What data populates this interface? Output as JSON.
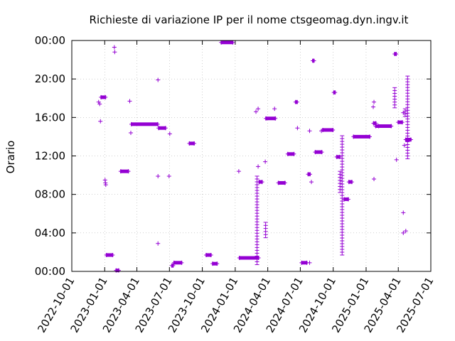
{
  "chart_data": {
    "type": "scatter",
    "title": "Richieste di variazione IP per il nome ctsgeomag.dyn.ingv.it",
    "xlabel": "",
    "ylabel": "Orario",
    "xlim": [
      "2022-10-01",
      "2025-07-01"
    ],
    "ylim": [
      "00:00",
      "24:00"
    ],
    "x_ticks": [
      "2022-10-01",
      "2023-01-01",
      "2023-04-01",
      "2023-07-01",
      "2023-10-01",
      "2024-01-01",
      "2024-04-01",
      "2024-07-01",
      "2024-10-01",
      "2025-01-01",
      "2025-04-01",
      "2025-07-01"
    ],
    "y_ticks": [
      "00:00",
      "04:00",
      "08:00",
      "12:00",
      "16:00",
      "20:00",
      "00:00"
    ],
    "grid": true,
    "legend": "none",
    "marker": "+",
    "color": "#9400d3",
    "series": [
      {
        "points": [
          {
            "x": "2022-12-15",
            "y": 17.6
          },
          {
            "x": "2022-12-18",
            "y": 17.4
          },
          {
            "x": "2022-12-20",
            "y": 15.6
          },
          {
            "x": "2023-01-02",
            "y": 9.5
          },
          {
            "x": "2023-01-03",
            "y": 9.2
          },
          {
            "x": "2023-01-04",
            "y": 9.0
          },
          {
            "x": "2023-01-28",
            "y": 23.3
          },
          {
            "x": "2023-01-29",
            "y": 22.8
          },
          {
            "x": "2023-03-12",
            "y": 17.7
          },
          {
            "x": "2023-03-15",
            "y": 14.4
          },
          {
            "x": "2023-05-30",
            "y": 19.9
          },
          {
            "x": "2023-05-30",
            "y": 9.9
          },
          {
            "x": "2023-05-30",
            "y": 2.9
          },
          {
            "x": "2023-06-30",
            "y": 9.9
          },
          {
            "x": "2023-07-02",
            "y": 14.3
          },
          {
            "x": "2024-01-11",
            "y": 10.4
          },
          {
            "x": "2024-02-28",
            "y": 16.6
          },
          {
            "x": "2024-03-05",
            "y": 16.9
          },
          {
            "x": "2024-03-05",
            "y": 10.9
          },
          {
            "x": "2024-03-25",
            "y": 11.4
          },
          {
            "x": "2024-04-20",
            "y": 16.9
          },
          {
            "x": "2024-06-23",
            "y": 14.9
          },
          {
            "x": "2024-07-27",
            "y": 14.6
          },
          {
            "x": "2024-07-27",
            "y": 0.9
          },
          {
            "x": "2024-08-01",
            "y": 9.3
          },
          {
            "x": "2024-08-29",
            "y": 14.6
          },
          {
            "x": "2025-01-21",
            "y": 17.1
          },
          {
            "x": "2025-01-23",
            "y": 17.6
          },
          {
            "x": "2025-01-23",
            "y": 9.6
          },
          {
            "x": "2025-03-27",
            "y": 11.6
          },
          {
            "x": "2025-04-15",
            "y": 16.5
          },
          {
            "x": "2025-04-15",
            "y": 6.1
          },
          {
            "x": "2025-04-15",
            "y": 4.0
          },
          {
            "x": "2025-04-18",
            "y": 13.1
          },
          {
            "x": "2025-04-22",
            "y": 4.2
          }
        ],
        "vertical_runs": [
          {
            "x": "2024-03-02",
            "y_from": 0.7,
            "y_to": 9.9
          },
          {
            "x": "2024-03-26",
            "y_from": 3.5,
            "y_to": 5.1
          },
          {
            "x": "2024-10-26",
            "y_from": 1.7,
            "y_to": 14.1
          },
          {
            "x": "2024-10-20",
            "y_from": 8.2,
            "y_to": 10.4
          },
          {
            "x": "2025-03-22",
            "y_from": 17.0,
            "y_to": 19.1
          },
          {
            "x": "2025-04-20",
            "y_from": 16.1,
            "y_to": 16.9
          },
          {
            "x": "2025-04-27",
            "y_from": 11.7,
            "y_to": 20.3
          }
        ],
        "horizontal_runs": [
          {
            "x_from": "2022-12-22",
            "x_to": "2023-01-03",
            "y": 18.1
          },
          {
            "x_from": "2023-01-06",
            "x_to": "2023-01-23",
            "y": 1.7
          },
          {
            "x_from": "2023-02-02",
            "x_to": "2023-02-09",
            "y": 0.1
          },
          {
            "x_from": "2023-02-15",
            "x_to": "2023-03-08",
            "y": 10.4
          },
          {
            "x_from": "2023-03-17",
            "x_to": "2023-05-29",
            "y": 15.3
          },
          {
            "x_from": "2023-06-01",
            "x_to": "2023-06-20",
            "y": 14.9
          },
          {
            "x_from": "2023-07-08",
            "x_to": "2023-07-11",
            "y": 0.6
          },
          {
            "x_from": "2023-07-14",
            "x_to": "2023-08-04",
            "y": 0.9
          },
          {
            "x_from": "2023-08-26",
            "x_to": "2023-09-08",
            "y": 13.3
          },
          {
            "x_from": "2023-10-12",
            "x_to": "2023-10-25",
            "y": 1.7
          },
          {
            "x_from": "2023-10-30",
            "x_to": "2023-11-11",
            "y": 0.8
          },
          {
            "x_from": "2023-11-23",
            "x_to": "2023-12-25",
            "y": 23.8
          },
          {
            "x_from": "2024-01-13",
            "x_to": "2024-03-06",
            "y": 1.4
          },
          {
            "x_from": "2024-03-08",
            "x_to": "2024-03-16",
            "y": 9.3
          },
          {
            "x_from": "2024-03-27",
            "x_to": "2024-04-22",
            "y": 15.9
          },
          {
            "x_from": "2024-05-01",
            "x_to": "2024-05-19",
            "y": 9.2
          },
          {
            "x_from": "2024-05-27",
            "x_to": "2024-06-13",
            "y": 12.2
          },
          {
            "x_from": "2024-06-18",
            "x_to": "2024-06-22",
            "y": 17.6
          },
          {
            "x_from": "2024-07-05",
            "x_to": "2024-07-19",
            "y": 0.9
          },
          {
            "x_from": "2024-07-23",
            "x_to": "2024-07-28",
            "y": 10.1
          },
          {
            "x_from": "2024-08-05",
            "x_to": "2024-08-08",
            "y": 21.9
          },
          {
            "x_from": "2024-08-12",
            "x_to": "2024-08-30",
            "y": 12.4
          },
          {
            "x_from": "2024-09-02",
            "x_to": "2024-09-30",
            "y": 14.7
          },
          {
            "x_from": "2024-10-03",
            "x_to": "2024-10-06",
            "y": 18.6
          },
          {
            "x_from": "2024-10-11",
            "x_to": "2024-10-19",
            "y": 11.9
          },
          {
            "x_from": "2024-11-01",
            "x_to": "2024-11-12",
            "y": 7.5
          },
          {
            "x_from": "2024-11-14",
            "x_to": "2024-11-22",
            "y": 9.3
          },
          {
            "x_from": "2024-11-27",
            "x_to": "2025-01-11",
            "y": 14.0
          },
          {
            "x_from": "2025-01-22",
            "x_to": "2025-01-28",
            "y": 15.4
          },
          {
            "x_from": "2025-01-28",
            "x_to": "2025-02-05",
            "y": 15.1
          },
          {
            "x_from": "2025-02-05",
            "x_to": "2025-03-12",
            "y": 15.1
          },
          {
            "x_from": "2025-03-22",
            "x_to": "2025-03-26",
            "y": 22.6
          },
          {
            "x_from": "2025-04-01",
            "x_to": "2025-04-12",
            "y": 15.5
          },
          {
            "x_from": "2025-04-22",
            "x_to": "2025-05-06",
            "y": 13.7
          }
        ]
      }
    ]
  }
}
